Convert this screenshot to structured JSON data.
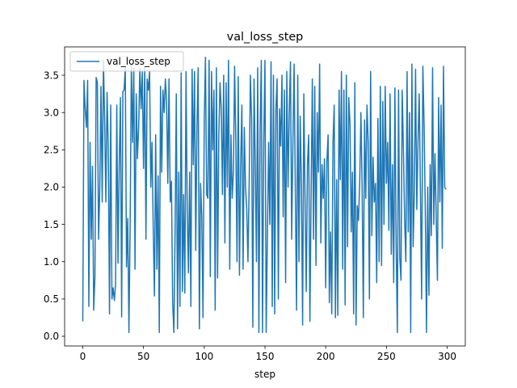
{
  "chart_data": {
    "type": "line",
    "title": "val_loss_step",
    "xlabel": "step",
    "ylabel": "",
    "xlim": [
      -14.95,
      314.95
    ],
    "ylim": [
      -0.13,
      3.88
    ],
    "xticks": [
      0,
      50,
      100,
      150,
      200,
      250,
      300
    ],
    "yticks": [
      0.0,
      0.5,
      1.0,
      1.5,
      2.0,
      2.5,
      3.0,
      3.5
    ],
    "xtick_labels": [
      "0",
      "50",
      "100",
      "150",
      "200",
      "250",
      "300"
    ],
    "ytick_labels": [
      "0.0",
      "0.5",
      "1.0",
      "1.5",
      "2.0",
      "2.5",
      "3.0",
      "3.5"
    ],
    "grid": false,
    "legend": "upper left",
    "series": [
      {
        "name": "val_loss_step",
        "color": "#1f77b4",
        "x": [
          0,
          1,
          2,
          3,
          4,
          5,
          6,
          7,
          8,
          9,
          10,
          11,
          12,
          13,
          14,
          15,
          16,
          17,
          18,
          19,
          20,
          21,
          22,
          23,
          24,
          25,
          26,
          27,
          28,
          29,
          30,
          31,
          32,
          33,
          34,
          35,
          36,
          37,
          38,
          39,
          40,
          41,
          42,
          43,
          44,
          45,
          46,
          47,
          48,
          49,
          50,
          51,
          52,
          53,
          54,
          55,
          56,
          57,
          58,
          59,
          60,
          61,
          62,
          63,
          64,
          65,
          66,
          67,
          68,
          69,
          70,
          71,
          72,
          73,
          74,
          75,
          76,
          77,
          78,
          79,
          80,
          81,
          82,
          83,
          84,
          85,
          86,
          87,
          88,
          89,
          90,
          91,
          92,
          93,
          94,
          95,
          96,
          97,
          98,
          99,
          100,
          101,
          102,
          103,
          104,
          105,
          106,
          107,
          108,
          109,
          110,
          111,
          112,
          113,
          114,
          115,
          116,
          117,
          118,
          119,
          120,
          121,
          122,
          123,
          124,
          125,
          126,
          127,
          128,
          129,
          130,
          131,
          132,
          133,
          134,
          135,
          136,
          137,
          138,
          139,
          140,
          141,
          142,
          143,
          144,
          145,
          146,
          147,
          148,
          149,
          150,
          151,
          152,
          153,
          154,
          155,
          156,
          157,
          158,
          159,
          160,
          161,
          162,
          163,
          164,
          165,
          166,
          167,
          168,
          169,
          170,
          171,
          172,
          173,
          174,
          175,
          176,
          177,
          178,
          179,
          180,
          181,
          182,
          183,
          184,
          185,
          186,
          187,
          188,
          189,
          190,
          191,
          192,
          193,
          194,
          195,
          196,
          197,
          198,
          199,
          200,
          201,
          202,
          203,
          204,
          205,
          206,
          207,
          208,
          209,
          210,
          211,
          212,
          213,
          214,
          215,
          216,
          217,
          218,
          219,
          220,
          221,
          222,
          223,
          224,
          225,
          226,
          227,
          228,
          229,
          230,
          231,
          232,
          233,
          234,
          235,
          236,
          237,
          238,
          239,
          240,
          241,
          242,
          243,
          244,
          245,
          246,
          247,
          248,
          249,
          250,
          251,
          252,
          253,
          254,
          255,
          256,
          257,
          258,
          259,
          260,
          261,
          262,
          263,
          264,
          265,
          266,
          267,
          268,
          269,
          270,
          271,
          272,
          273,
          274,
          275,
          276,
          277,
          278,
          279,
          280,
          281,
          282,
          283,
          284,
          285,
          286,
          287,
          288,
          289,
          290,
          291,
          292,
          293,
          294,
          295,
          296,
          297,
          298,
          299
        ],
        "y": [
          0.2,
          3.43,
          3.05,
          2.8,
          3.43,
          0.4,
          2.6,
          1.3,
          2.28,
          0.35,
          0.8,
          3.47,
          3.4,
          1.3,
          2.0,
          3.35,
          1.8,
          3.7,
          2.9,
          1.8,
          3.27,
          2.5,
          0.3,
          3.1,
          0.5,
          0.65,
          0.48,
          0.7,
          3.1,
          0.98,
          2.3,
          3.2,
          0.26,
          3.28,
          3.3,
          3.6,
          0.93,
          1.58,
          0.05,
          1.5,
          3.65,
          2.6,
          3.6,
          0.9,
          3.25,
          2.38,
          2.8,
          3.6,
          3.05,
          3.55,
          2.25,
          3.6,
          1.3,
          3.45,
          3.3,
          3.55,
          2.0,
          2.6,
          1.45,
          0.54,
          2.7,
          0.9,
          2.15,
          0.05,
          3.35,
          2.2,
          3.3,
          3.0,
          3.45,
          3.15,
          2.05,
          3.45,
          1.8,
          2.08,
          0.45,
          0.05,
          1.4,
          3.25,
          0.1,
          2.2,
          0.4,
          3.53,
          0.6,
          1.9,
          0.58,
          3.55,
          1.68,
          0.85,
          2.2,
          0.4,
          3.58,
          2.3,
          3.55,
          1.15,
          2.8,
          3.6,
          0.1,
          2.05,
          1.6,
          0.25,
          2.9,
          3.74,
          1.9,
          1.85,
          3.7,
          0.8,
          3.55,
          2.5,
          3.3,
          0.35,
          3.6,
          0.78,
          2.7,
          3.4,
          3.05,
          1.9,
          3.5,
          1.25,
          3.4,
          2.0,
          3.7,
          0.9,
          2.7,
          1.85,
          2.2,
          3.62,
          2.6,
          1.0,
          3.48,
          0.82,
          2.3,
          3.1,
          0.9,
          2.8,
          2.0,
          1.7,
          1.0,
          2.05,
          3.5,
          2.9,
          0.12,
          3.45,
          2.3,
          1.0,
          3.6,
          0.05,
          2.8,
          3.7,
          0.05,
          2.6,
          3.7,
          0.05,
          1.3,
          2.6,
          1.5,
          3.68,
          0.4,
          3.5,
          0.3,
          3.05,
          3.45,
          0.5,
          3.05,
          2.55,
          3.5,
          1.6,
          3.3,
          0.72,
          3.55,
          2.0,
          3.0,
          3.68,
          1.3,
          2.6,
          3.65,
          1.95,
          0.35,
          3.5,
          1.0,
          2.95,
          2.05,
          0.15,
          3.25,
          1.85,
          0.6,
          2.3,
          2.7,
          0.2,
          1.9,
          3.45,
          1.3,
          3.35,
          0.95,
          3.0,
          2.2,
          3.65,
          1.25,
          2.3,
          1.85,
          2.38,
          0.65,
          2.35,
          2.7,
          0.45,
          1.4,
          0.3,
          2.6,
          3.1,
          0.25,
          2.1,
          0.28,
          3.3,
          2.1,
          3.55,
          0.9,
          3.3,
          0.42,
          3.5,
          1.2,
          3.2,
          2.85,
          1.4,
          2.2,
          0.3,
          3.4,
          0.15,
          1.75,
          1.55,
          2.05,
          3.0,
          2.0,
          0.25,
          2.9,
          1.85,
          3.1,
          2.6,
          0.5,
          3.55,
          1.35,
          2.4,
          1.8,
          2.05,
          0.72,
          2.92,
          1.0,
          3.35,
          0.95,
          3.15,
          1.5,
          3.35,
          2.05,
          2.6,
          1.42,
          3.25,
          1.1,
          2.3,
          0.72,
          3.33,
          1.25,
          0.05,
          3.3,
          1.05,
          0.75,
          3.3,
          2.5,
          1.55,
          1.0,
          3.55,
          1.4,
          3.0,
          0.05,
          3.65,
          1.2,
          1.95,
          3.58,
          1.7,
          2.6,
          3.25,
          1.95,
          0.5,
          3.62,
          2.85,
          1.7,
          0.05,
          2.0,
          0.55,
          2.3,
          1.35,
          3.6,
          1.5,
          2.45,
          1.58,
          0.75,
          3.2,
          1.8,
          3.1,
          1.18,
          3.62,
          2.0,
          1.97
        ]
      }
    ]
  }
}
